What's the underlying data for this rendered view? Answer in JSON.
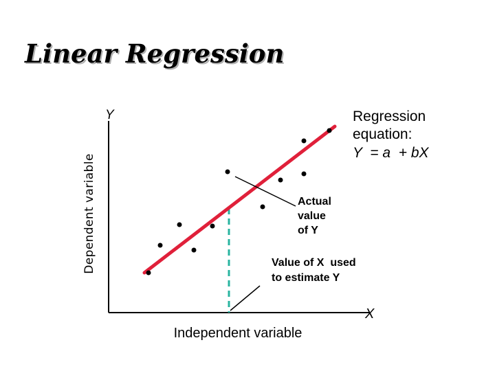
{
  "slide": {
    "title": "Linear Regression"
  },
  "diagram": {
    "y_axis_letter": "Y",
    "x_axis_letter": "X",
    "y_axis_label": "Dependent variable",
    "x_axis_label": "Independent variable",
    "equation_line1": "Regression",
    "equation_line2": "equation:",
    "equation_line3": "Y  = a  + bX",
    "actual_value_line1": "Actual",
    "actual_value_line2": "value",
    "actual_value_line3": "of Y",
    "x_value_line1": "Value of X  used",
    "x_value_line2": "to estimate Y",
    "colors": {
      "regression_line": "#e0203a",
      "dashed_guide": "#28b4a0",
      "axes": "#000000",
      "points": "#000000"
    }
  }
}
